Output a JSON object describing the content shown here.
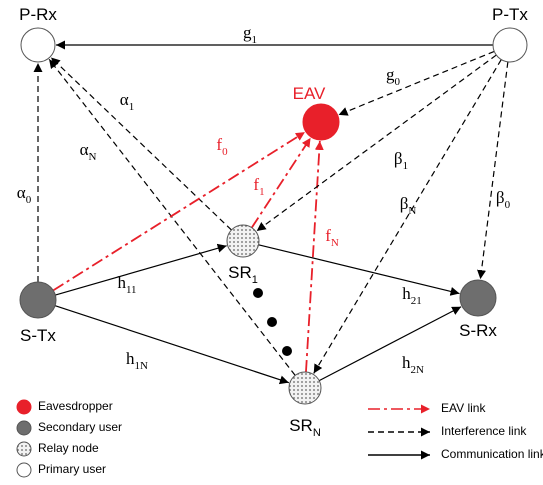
{
  "nodes": [
    {
      "label": "P-Rx"
    },
    {
      "label": "P-Tx"
    },
    {
      "label": "EAV"
    },
    {
      "label": "SR",
      "sub": "1"
    },
    {
      "label": "S-Tx"
    },
    {
      "label": "S-Rx"
    },
    {
      "label": "SR",
      "sub": "N"
    }
  ],
  "edges": [
    {
      "label": "g",
      "sub": "1"
    },
    {
      "label": "g",
      "sub": "0"
    },
    {
      "label": "α",
      "sub": "1"
    },
    {
      "label": "α",
      "sub": "N"
    },
    {
      "label": "α",
      "sub": "0"
    },
    {
      "label": "f",
      "sub": "0"
    },
    {
      "label": "f",
      "sub": "1"
    },
    {
      "label": "f",
      "sub": "N"
    },
    {
      "label": "β",
      "sub": "1"
    },
    {
      "label": "β",
      "sub": "N"
    },
    {
      "label": "β",
      "sub": "0"
    },
    {
      "label": "h",
      "sub": "11"
    },
    {
      "label": "h",
      "sub": "1N"
    },
    {
      "label": "h",
      "sub": "21"
    },
    {
      "label": "h",
      "sub": "2N"
    }
  ],
  "legend": {
    "nodes": [
      "Eavesdropper",
      "Secondary user",
      "Relay node",
      "Primary user"
    ],
    "links": [
      "EAV link",
      "Interference link",
      "Communication link"
    ]
  }
}
